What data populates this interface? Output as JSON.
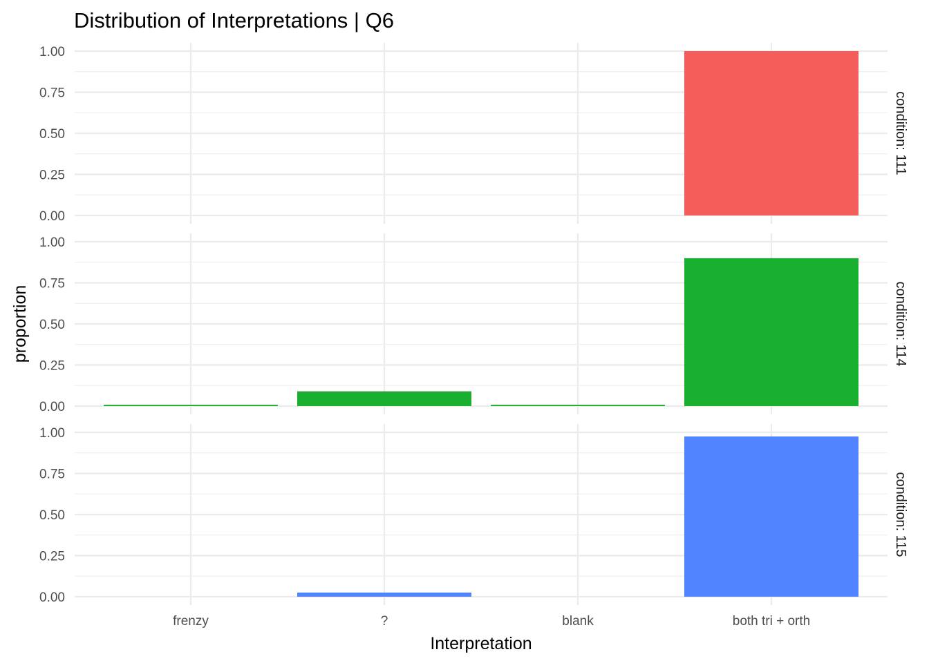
{
  "chart_data": {
    "type": "bar",
    "title": "Distribution of Interpretations | Q6",
    "xlabel": "Interpretation",
    "ylabel": "proportion",
    "categories": [
      "frenzy",
      "?",
      "blank",
      "both tri + orth"
    ],
    "ylim": [
      0,
      1
    ],
    "yticks": [
      "0.00",
      "0.25",
      "0.50",
      "0.75",
      "1.00"
    ],
    "grid": true,
    "legend": "none",
    "facets": [
      {
        "label": "condition: 111",
        "color": "#F35E5A",
        "values": [
          0,
          0,
          0,
          1.0
        ]
      },
      {
        "label": "condition: 114",
        "color": "#19B02F",
        "values": [
          0.008,
          0.09,
          0.008,
          0.9
        ]
      },
      {
        "label": "condition: 115",
        "color": "#4F83FF",
        "values": [
          0,
          0.025,
          0,
          0.975
        ]
      }
    ]
  }
}
